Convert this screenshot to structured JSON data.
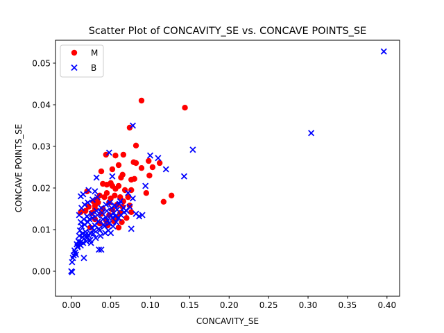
{
  "chart_data": {
    "type": "scatter",
    "title": "Scatter Plot of CONCAVITY_SE vs. CONCAVE POINTS_SE",
    "xlabel": "CONCAVITY_SE",
    "ylabel": "CONCAVE POINTS_SE",
    "xlim": [
      -0.02,
      0.416
    ],
    "ylim": [
      -0.006,
      0.0555
    ],
    "xticks": [
      "0.00",
      "0.05",
      "0.10",
      "0.15",
      "0.20",
      "0.25",
      "0.30",
      "0.35",
      "0.40"
    ],
    "xtick_values": [
      0.0,
      0.05,
      0.1,
      0.15,
      0.2,
      0.25,
      0.3,
      0.35,
      0.4
    ],
    "yticks": [
      "0.00",
      "0.01",
      "0.02",
      "0.03",
      "0.04",
      "0.05"
    ],
    "ytick_values": [
      0.0,
      0.01,
      0.02,
      0.03,
      0.04,
      0.05
    ],
    "grid": false,
    "legend_position": "top-left",
    "series": [
      {
        "name": "M",
        "marker": "circle",
        "color": "#ff0000",
        "points": [
          [
            0.089,
            0.041
          ],
          [
            0.144,
            0.0393
          ],
          [
            0.074,
            0.0345
          ],
          [
            0.082,
            0.0302
          ],
          [
            0.066,
            0.028
          ],
          [
            0.044,
            0.028
          ],
          [
            0.056,
            0.0278
          ],
          [
            0.098,
            0.0265
          ],
          [
            0.112,
            0.026
          ],
          [
            0.079,
            0.0262
          ],
          [
            0.082,
            0.026
          ],
          [
            0.06,
            0.0255
          ],
          [
            0.089,
            0.0248
          ],
          [
            0.103,
            0.025
          ],
          [
            0.052,
            0.0245
          ],
          [
            0.038,
            0.024
          ],
          [
            0.099,
            0.023
          ],
          [
            0.065,
            0.0232
          ],
          [
            0.063,
            0.0225
          ],
          [
            0.08,
            0.0222
          ],
          [
            0.076,
            0.022
          ],
          [
            0.04,
            0.021
          ],
          [
            0.05,
            0.0212
          ],
          [
            0.052,
            0.0205
          ],
          [
            0.06,
            0.0205
          ],
          [
            0.045,
            0.0208
          ],
          [
            0.056,
            0.0198
          ],
          [
            0.068,
            0.0195
          ],
          [
            0.076,
            0.0195
          ],
          [
            0.095,
            0.0188
          ],
          [
            0.127,
            0.0182
          ],
          [
            0.117,
            0.0167
          ],
          [
            0.036,
            0.0182
          ],
          [
            0.042,
            0.0178
          ],
          [
            0.05,
            0.0175
          ],
          [
            0.062,
            0.0178
          ],
          [
            0.072,
            0.0178
          ],
          [
            0.028,
            0.0168
          ],
          [
            0.034,
            0.0165
          ],
          [
            0.048,
            0.0165
          ],
          [
            0.058,
            0.016
          ],
          [
            0.065,
            0.0155
          ],
          [
            0.074,
            0.0158
          ],
          [
            0.022,
            0.0155
          ],
          [
            0.03,
            0.015
          ],
          [
            0.04,
            0.015
          ],
          [
            0.052,
            0.0148
          ],
          [
            0.062,
            0.014
          ],
          [
            0.076,
            0.0142
          ],
          [
            0.018,
            0.0145
          ],
          [
            0.026,
            0.014
          ],
          [
            0.038,
            0.0138
          ],
          [
            0.048,
            0.0135
          ],
          [
            0.058,
            0.013
          ],
          [
            0.07,
            0.0128
          ],
          [
            0.03,
            0.0125
          ],
          [
            0.044,
            0.0122
          ],
          [
            0.054,
            0.012
          ],
          [
            0.064,
            0.0118
          ],
          [
            0.036,
            0.0115
          ],
          [
            0.046,
            0.011
          ],
          [
            0.06,
            0.0105
          ],
          [
            0.024,
            0.0105
          ],
          [
            0.02,
            0.0192
          ],
          [
            0.012,
            0.0142
          ],
          [
            0.032,
            0.0172
          ],
          [
            0.045,
            0.0188
          ],
          [
            0.066,
            0.0168
          ],
          [
            0.055,
            0.0182
          ],
          [
            0.03,
            0.0158
          ]
        ]
      },
      {
        "name": "B",
        "marker": "x",
        "color": "#0000ff",
        "points": [
          [
            0.396,
            0.0528
          ],
          [
            0.304,
            0.0332
          ],
          [
            0.078,
            0.035
          ],
          [
            0.154,
            0.0292
          ],
          [
            0.048,
            0.0285
          ],
          [
            0.1,
            0.0278
          ],
          [
            0.11,
            0.0272
          ],
          [
            0.12,
            0.0245
          ],
          [
            0.143,
            0.0228
          ],
          [
            0.052,
            0.0228
          ],
          [
            0.094,
            0.0205
          ],
          [
            0.032,
            0.0225
          ],
          [
            0.022,
            0.0195
          ],
          [
            0.015,
            0.0185
          ],
          [
            0.03,
            0.0192
          ],
          [
            0.072,
            0.0188
          ],
          [
            0.078,
            0.0175
          ],
          [
            0.062,
            0.0168
          ],
          [
            0.082,
            0.0138
          ],
          [
            0.09,
            0.0135
          ],
          [
            0.086,
            0.0132
          ],
          [
            0.076,
            0.0102
          ],
          [
            0.05,
            0.0092
          ],
          [
            0.035,
            0.0052
          ],
          [
            0.038,
            0.0052
          ],
          [
            0.016,
            0.0032
          ],
          [
            0.006,
            0.004
          ],
          [
            0.002,
            0.0032
          ],
          [
            0.001,
            0.0022
          ],
          [
            0.0,
            0.0
          ],
          [
            0.001,
            -0.0002
          ],
          [
            0.004,
            0.005
          ],
          [
            0.008,
            0.006
          ],
          [
            0.012,
            0.007
          ],
          [
            0.01,
            0.0085
          ],
          [
            0.014,
            0.009
          ],
          [
            0.018,
            0.0095
          ],
          [
            0.02,
            0.008
          ],
          [
            0.024,
            0.0075
          ],
          [
            0.026,
            0.0105
          ],
          [
            0.03,
            0.011
          ],
          [
            0.034,
            0.012
          ],
          [
            0.04,
            0.0125
          ],
          [
            0.044,
            0.013
          ],
          [
            0.05,
            0.0135
          ],
          [
            0.054,
            0.014
          ],
          [
            0.058,
            0.0148
          ],
          [
            0.066,
            0.0152
          ],
          [
            0.07,
            0.0145
          ],
          [
            0.074,
            0.0155
          ],
          [
            0.06,
            0.0128
          ],
          [
            0.048,
            0.0115
          ],
          [
            0.042,
            0.0108
          ],
          [
            0.036,
            0.0098
          ],
          [
            0.028,
            0.009
          ],
          [
            0.022,
            0.0085
          ],
          [
            0.016,
            0.0078
          ],
          [
            0.012,
            0.0062
          ],
          [
            0.008,
            0.0058
          ],
          [
            0.005,
            0.0045
          ],
          [
            0.015,
            0.0068
          ],
          [
            0.019,
            0.0072
          ],
          [
            0.025,
            0.0068
          ],
          [
            0.031,
            0.008
          ],
          [
            0.037,
            0.0085
          ],
          [
            0.043,
            0.0092
          ],
          [
            0.047,
            0.0098
          ],
          [
            0.053,
            0.0108
          ],
          [
            0.057,
            0.0118
          ],
          [
            0.063,
            0.0135
          ],
          [
            0.067,
            0.0142
          ],
          [
            0.011,
            0.0098
          ],
          [
            0.013,
            0.0108
          ],
          [
            0.017,
            0.0112
          ],
          [
            0.021,
            0.0118
          ],
          [
            0.023,
            0.0125
          ],
          [
            0.027,
            0.0128
          ],
          [
            0.033,
            0.0135
          ],
          [
            0.039,
            0.014
          ],
          [
            0.045,
            0.0145
          ],
          [
            0.051,
            0.0152
          ],
          [
            0.055,
            0.0158
          ],
          [
            0.061,
            0.0162
          ],
          [
            0.009,
            0.0072
          ],
          [
            0.007,
            0.0065
          ],
          [
            0.003,
            0.0038
          ],
          [
            0.014,
            0.0082
          ],
          [
            0.018,
            0.0088
          ],
          [
            0.024,
            0.0092
          ],
          [
            0.029,
            0.0098
          ],
          [
            0.035,
            0.0102
          ],
          [
            0.041,
            0.0112
          ],
          [
            0.046,
            0.0122
          ],
          [
            0.052,
            0.0128
          ],
          [
            0.056,
            0.0132
          ],
          [
            0.012,
            0.0118
          ],
          [
            0.016,
            0.0125
          ],
          [
            0.02,
            0.0132
          ],
          [
            0.026,
            0.0138
          ],
          [
            0.032,
            0.0145
          ],
          [
            0.038,
            0.0152
          ],
          [
            0.044,
            0.016
          ],
          [
            0.049,
            0.0165
          ],
          [
            0.013,
            0.0152
          ],
          [
            0.017,
            0.016
          ],
          [
            0.021,
            0.0165
          ],
          [
            0.027,
            0.0172
          ],
          [
            0.033,
            0.0178
          ],
          [
            0.012,
            0.018
          ],
          [
            0.01,
            0.0135
          ]
        ]
      }
    ]
  }
}
